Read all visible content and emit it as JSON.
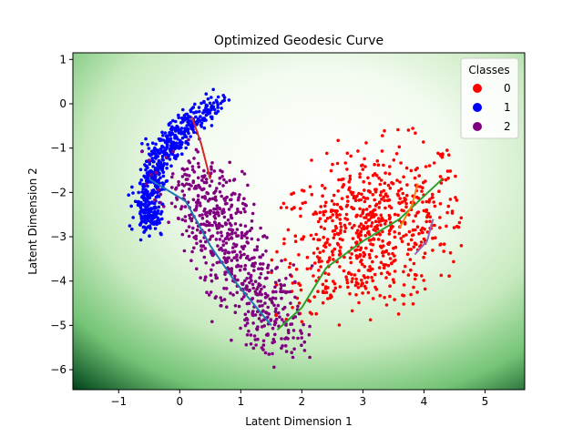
{
  "chart_data": {
    "type": "scatter",
    "title": "Optimized Geodesic Curve",
    "xlabel": "Latent Dimension 1",
    "ylabel": "Latent Dimension 2",
    "xlim": [
      -1.75,
      5.65
    ],
    "ylim": [
      -6.45,
      1.15
    ],
    "xticks": [
      -1,
      0,
      1,
      2,
      3,
      4,
      5
    ],
    "yticks": [
      1,
      0,
      -1,
      -2,
      -3,
      -4,
      -5,
      -6
    ],
    "grid": false,
    "background": "green density field (dark green at corners, near-white at center)",
    "legend": {
      "title": "Classes",
      "placement": "top-right",
      "entries": [
        {
          "label": "0",
          "color": "#ff0000"
        },
        {
          "label": "1",
          "color": "#0000ff"
        },
        {
          "label": "2",
          "color": "#800080"
        }
      ]
    },
    "series": [
      {
        "name": "0",
        "kind": "point cloud",
        "color": "#ff0000",
        "count": 700,
        "center": [
          3.1,
          -2.9
        ],
        "spread": [
          0.8,
          0.9
        ],
        "range_x": [
          1.5,
          4.7
        ],
        "range_y": [
          -5.0,
          -0.5
        ]
      },
      {
        "name": "1",
        "kind": "point cloud (arc)",
        "color": "#0000ff",
        "count": 600,
        "arc_from": [
          0.7,
          0.1
        ],
        "arc_through": [
          -0.3,
          -1.2
        ],
        "arc_to": [
          -0.5,
          -2.8
        ]
      },
      {
        "name": "2",
        "kind": "point cloud",
        "color": "#800080",
        "count": 650,
        "band_from": [
          0.2,
          -1.5
        ],
        "band_to": [
          1.6,
          -5.3
        ],
        "range_x": [
          0.0,
          1.9
        ]
      }
    ],
    "curves": [
      {
        "color": "#d62728",
        "points": [
          [
            0.2,
            -0.3
          ],
          [
            0.35,
            -0.9
          ],
          [
            0.5,
            -1.7
          ]
        ]
      },
      {
        "color": "#1f77b4",
        "points": [
          [
            -0.5,
            -1.7
          ],
          [
            0.1,
            -2.2
          ],
          [
            0.5,
            -3.2
          ],
          [
            0.9,
            -4.0
          ],
          [
            1.5,
            -5.0
          ]
        ]
      },
      {
        "color": "#2ca02c",
        "points": [
          [
            1.6,
            -5.1
          ],
          [
            2.0,
            -4.6
          ],
          [
            2.4,
            -3.7
          ],
          [
            3.0,
            -3.1
          ],
          [
            3.6,
            -2.6
          ],
          [
            4.3,
            -1.7
          ]
        ]
      },
      {
        "color": "#ff7f0e",
        "points": [
          [
            3.6,
            -2.8
          ],
          [
            3.8,
            -2.3
          ],
          [
            3.9,
            -1.8
          ]
        ]
      },
      {
        "color": "#9467bd",
        "points": [
          [
            3.85,
            -3.4
          ],
          [
            4.05,
            -3.1
          ],
          [
            4.15,
            -2.6
          ]
        ]
      }
    ]
  }
}
